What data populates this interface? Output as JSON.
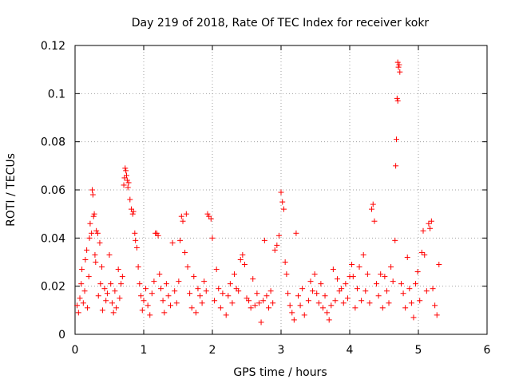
{
  "chart_data": {
    "type": "scatter",
    "title": "Day 219 of 2018, Rate Of TEC Index for receiver kokr",
    "xlabel": "GPS time / hours",
    "ylabel": "ROTI / TECUs",
    "xlim": [
      0,
      6
    ],
    "ylim": [
      0,
      0.12
    ],
    "xticks": [
      0,
      1,
      2,
      3,
      4,
      5,
      6
    ],
    "xtick_labels": [
      "0",
      "1",
      "2",
      "3",
      "4",
      "5",
      "6"
    ],
    "yticks": [
      0,
      0.02,
      0.04,
      0.06,
      0.08,
      0.1,
      0.12
    ],
    "ytick_labels": [
      "0",
      "0.02",
      "0.04",
      "0.06",
      "0.08",
      "0.1",
      "0.12"
    ],
    "grid": true,
    "marker": "+",
    "color": "#ff0000",
    "series": [
      {
        "name": "ROTI",
        "points": [
          [
            0.03,
            0.012
          ],
          [
            0.05,
            0.009
          ],
          [
            0.07,
            0.015
          ],
          [
            0.09,
            0.021
          ],
          [
            0.1,
            0.027
          ],
          [
            0.12,
            0.013
          ],
          [
            0.14,
            0.018
          ],
          [
            0.15,
            0.031
          ],
          [
            0.17,
            0.035
          ],
          [
            0.18,
            0.011
          ],
          [
            0.2,
            0.024
          ],
          [
            0.21,
            0.04
          ],
          [
            0.22,
            0.046
          ],
          [
            0.24,
            0.042
          ],
          [
            0.25,
            0.06
          ],
          [
            0.26,
            0.058
          ],
          [
            0.27,
            0.049
          ],
          [
            0.28,
            0.05
          ],
          [
            0.29,
            0.033
          ],
          [
            0.3,
            0.03
          ],
          [
            0.31,
            0.043
          ],
          [
            0.33,
            0.042
          ],
          [
            0.34,
            0.016
          ],
          [
            0.36,
            0.038
          ],
          [
            0.37,
            0.021
          ],
          [
            0.39,
            0.028
          ],
          [
            0.4,
            0.01
          ],
          [
            0.43,
            0.019
          ],
          [
            0.45,
            0.014
          ],
          [
            0.47,
            0.017
          ],
          [
            0.5,
            0.033
          ],
          [
            0.52,
            0.021
          ],
          [
            0.54,
            0.013
          ],
          [
            0.56,
            0.009
          ],
          [
            0.58,
            0.018
          ],
          [
            0.6,
            0.011
          ],
          [
            0.63,
            0.027
          ],
          [
            0.65,
            0.015
          ],
          [
            0.67,
            0.021
          ],
          [
            0.69,
            0.024
          ],
          [
            0.71,
            0.062
          ],
          [
            0.72,
            0.065
          ],
          [
            0.73,
            0.069
          ],
          [
            0.74,
            0.068
          ],
          [
            0.75,
            0.066
          ],
          [
            0.76,
            0.064
          ],
          [
            0.77,
            0.061
          ],
          [
            0.78,
            0.063
          ],
          [
            0.8,
            0.056
          ],
          [
            0.82,
            0.052
          ],
          [
            0.84,
            0.05
          ],
          [
            0.85,
            0.051
          ],
          [
            0.87,
            0.042
          ],
          [
            0.88,
            0.039
          ],
          [
            0.9,
            0.036
          ],
          [
            0.92,
            0.028
          ],
          [
            0.94,
            0.021
          ],
          [
            0.96,
            0.016
          ],
          [
            0.98,
            0.01
          ],
          [
            1.0,
            0.014
          ],
          [
            1.03,
            0.019
          ],
          [
            1.06,
            0.012
          ],
          [
            1.09,
            0.008
          ],
          [
            1.12,
            0.017
          ],
          [
            1.15,
            0.022
          ],
          [
            1.17,
            0.042
          ],
          [
            1.19,
            0.042
          ],
          [
            1.21,
            0.041
          ],
          [
            1.23,
            0.025
          ],
          [
            1.25,
            0.019
          ],
          [
            1.28,
            0.014
          ],
          [
            1.3,
            0.009
          ],
          [
            1.33,
            0.021
          ],
          [
            1.36,
            0.016
          ],
          [
            1.39,
            0.012
          ],
          [
            1.42,
            0.038
          ],
          [
            1.45,
            0.018
          ],
          [
            1.48,
            0.013
          ],
          [
            1.51,
            0.022
          ],
          [
            1.53,
            0.039
          ],
          [
            1.55,
            0.049
          ],
          [
            1.57,
            0.047
          ],
          [
            1.6,
            0.034
          ],
          [
            1.62,
            0.05
          ],
          [
            1.64,
            0.028
          ],
          [
            1.67,
            0.017
          ],
          [
            1.7,
            0.011
          ],
          [
            1.73,
            0.024
          ],
          [
            1.76,
            0.009
          ],
          [
            1.79,
            0.019
          ],
          [
            1.82,
            0.016
          ],
          [
            1.85,
            0.013
          ],
          [
            1.88,
            0.022
          ],
          [
            1.91,
            0.018
          ],
          [
            1.93,
            0.05
          ],
          [
            1.95,
            0.049
          ],
          [
            1.98,
            0.048
          ],
          [
            2.0,
            0.04
          ],
          [
            2.03,
            0.014
          ],
          [
            2.06,
            0.027
          ],
          [
            2.09,
            0.019
          ],
          [
            2.12,
            0.011
          ],
          [
            2.15,
            0.017
          ],
          [
            2.2,
            0.008
          ],
          [
            2.23,
            0.016
          ],
          [
            2.26,
            0.021
          ],
          [
            2.29,
            0.013
          ],
          [
            2.32,
            0.025
          ],
          [
            2.35,
            0.019
          ],
          [
            2.38,
            0.018
          ],
          [
            2.41,
            0.031
          ],
          [
            2.44,
            0.033
          ],
          [
            2.47,
            0.029
          ],
          [
            2.5,
            0.015
          ],
          [
            2.53,
            0.014
          ],
          [
            2.56,
            0.011
          ],
          [
            2.59,
            0.023
          ],
          [
            2.62,
            0.012
          ],
          [
            2.65,
            0.017
          ],
          [
            2.68,
            0.013
          ],
          [
            2.71,
            0.005
          ],
          [
            2.74,
            0.014
          ],
          [
            2.76,
            0.039
          ],
          [
            2.79,
            0.016
          ],
          [
            2.82,
            0.011
          ],
          [
            2.85,
            0.018
          ],
          [
            2.88,
            0.013
          ],
          [
            2.91,
            0.035
          ],
          [
            2.94,
            0.037
          ],
          [
            2.97,
            0.041
          ],
          [
            3.0,
            0.059
          ],
          [
            3.02,
            0.055
          ],
          [
            3.04,
            0.052
          ],
          [
            3.06,
            0.03
          ],
          [
            3.08,
            0.025
          ],
          [
            3.1,
            0.017
          ],
          [
            3.13,
            0.012
          ],
          [
            3.16,
            0.009
          ],
          [
            3.19,
            0.006
          ],
          [
            3.22,
            0.042
          ],
          [
            3.25,
            0.016
          ],
          [
            3.28,
            0.012
          ],
          [
            3.31,
            0.019
          ],
          [
            3.34,
            0.008
          ],
          [
            3.4,
            0.014
          ],
          [
            3.43,
            0.022
          ],
          [
            3.46,
            0.018
          ],
          [
            3.49,
            0.025
          ],
          [
            3.52,
            0.017
          ],
          [
            3.55,
            0.013
          ],
          [
            3.58,
            0.021
          ],
          [
            3.61,
            0.011
          ],
          [
            3.64,
            0.016
          ],
          [
            3.67,
            0.009
          ],
          [
            3.7,
            0.006
          ],
          [
            3.73,
            0.012
          ],
          [
            3.76,
            0.027
          ],
          [
            3.79,
            0.014
          ],
          [
            3.82,
            0.023
          ],
          [
            3.85,
            0.018
          ],
          [
            3.88,
            0.019
          ],
          [
            3.91,
            0.013
          ],
          [
            3.94,
            0.021
          ],
          [
            3.97,
            0.015
          ],
          [
            4.0,
            0.024
          ],
          [
            4.03,
            0.029
          ],
          [
            4.05,
            0.024
          ],
          [
            4.08,
            0.011
          ],
          [
            4.11,
            0.019
          ],
          [
            4.14,
            0.028
          ],
          [
            4.17,
            0.014
          ],
          [
            4.2,
            0.033
          ],
          [
            4.23,
            0.018
          ],
          [
            4.26,
            0.025
          ],
          [
            4.29,
            0.013
          ],
          [
            4.32,
            0.052
          ],
          [
            4.34,
            0.054
          ],
          [
            4.36,
            0.047
          ],
          [
            4.39,
            0.021
          ],
          [
            4.42,
            0.016
          ],
          [
            4.45,
            0.025
          ],
          [
            4.48,
            0.011
          ],
          [
            4.51,
            0.024
          ],
          [
            4.54,
            0.018
          ],
          [
            4.57,
            0.013
          ],
          [
            4.6,
            0.028
          ],
          [
            4.63,
            0.022
          ],
          [
            4.66,
            0.039
          ],
          [
            4.67,
            0.07
          ],
          [
            4.68,
            0.081
          ],
          [
            4.69,
            0.098
          ],
          [
            4.7,
            0.097
          ],
          [
            4.7,
            0.113
          ],
          [
            4.71,
            0.111
          ],
          [
            4.72,
            0.112
          ],
          [
            4.73,
            0.109
          ],
          [
            4.75,
            0.021
          ],
          [
            4.78,
            0.017
          ],
          [
            4.81,
            0.011
          ],
          [
            4.84,
            0.032
          ],
          [
            4.87,
            0.019
          ],
          [
            4.9,
            0.013
          ],
          [
            4.93,
            0.007
          ],
          [
            4.96,
            0.021
          ],
          [
            4.99,
            0.026
          ],
          [
            5.02,
            0.014
          ],
          [
            5.05,
            0.034
          ],
          [
            5.07,
            0.043
          ],
          [
            5.09,
            0.033
          ],
          [
            5.12,
            0.018
          ],
          [
            5.15,
            0.046
          ],
          [
            5.17,
            0.044
          ],
          [
            5.19,
            0.047
          ],
          [
            5.21,
            0.019
          ],
          [
            5.24,
            0.012
          ],
          [
            5.27,
            0.008
          ],
          [
            5.3,
            0.029
          ]
        ]
      }
    ]
  }
}
